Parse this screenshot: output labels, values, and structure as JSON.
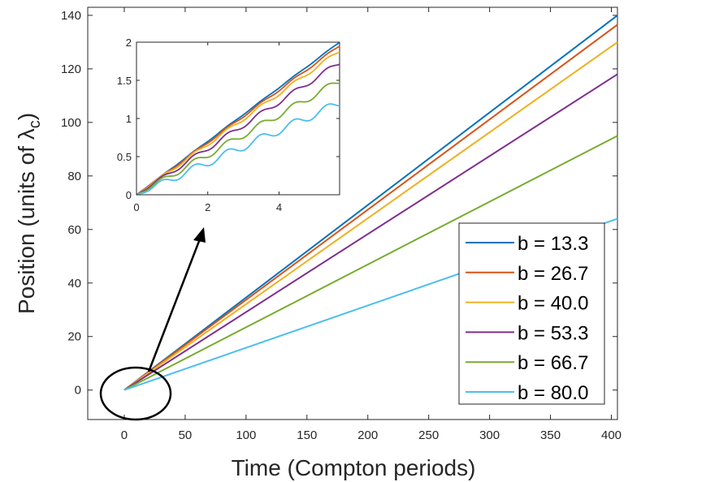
{
  "chart_data": [
    {
      "type": "line",
      "name": "main",
      "title": "",
      "xlabel": "Time (Compton periods)",
      "ylabel_prefix": "Position (units of ",
      "ylabel_symbol": "λ",
      "ylabel_subscript": "c",
      "ylabel_suffix": ")",
      "xlim": [
        -30,
        405
      ],
      "ylim": [
        -11,
        143
      ],
      "xticks": [
        0,
        50,
        100,
        150,
        200,
        250,
        300,
        350,
        400
      ],
      "yticks": [
        0,
        20,
        40,
        60,
        80,
        100,
        120,
        140
      ],
      "xtick_labels": [
        "0",
        "50",
        "100",
        "150",
        "200",
        "250",
        "300",
        "350",
        "400"
      ],
      "ytick_labels": [
        "0",
        "20",
        "40",
        "60",
        "80",
        "100",
        "120",
        "140"
      ],
      "series": [
        {
          "name": "b = 13.3",
          "color": "#0072BD",
          "x": [
            0,
            405
          ],
          "y": [
            0,
            140
          ]
        },
        {
          "name": "b = 26.7",
          "color": "#D95319",
          "x": [
            0,
            405
          ],
          "y": [
            0,
            136.5
          ]
        },
        {
          "name": "b = 40.0",
          "color": "#EDB120",
          "x": [
            0,
            405
          ],
          "y": [
            0,
            130
          ]
        },
        {
          "name": "b = 53.3",
          "color": "#7E2F8E",
          "x": [
            0,
            405
          ],
          "y": [
            0,
            118
          ]
        },
        {
          "name": "b = 66.7",
          "color": "#77AC30",
          "x": [
            0,
            405
          ],
          "y": [
            0,
            95
          ]
        },
        {
          "name": "b = 80.0",
          "color": "#4DBEEE",
          "x": [
            0,
            405
          ],
          "y": [
            0,
            64
          ]
        }
      ],
      "legend_location": "bottom-right",
      "grid": false
    },
    {
      "type": "line",
      "name": "inset",
      "title": "",
      "xlim": [
        0,
        5.7
      ],
      "ylim": [
        0,
        2
      ],
      "xticks": [
        0,
        2,
        4
      ],
      "yticks": [
        0,
        0.5,
        1,
        1.5,
        2
      ],
      "xtick_labels": [
        "0",
        "2",
        "4"
      ],
      "ytick_labels": [
        "0",
        "0.5",
        "1",
        "1.5",
        "2"
      ],
      "series": [
        {
          "name": "b = 13.3",
          "color": "#0072BD",
          "slope": 0.351,
          "osc_amp": 0.005
        },
        {
          "name": "b = 26.7",
          "color": "#D95319",
          "slope": 0.343,
          "osc_amp": 0.012
        },
        {
          "name": "b = 40.0",
          "color": "#EDB120",
          "slope": 0.331,
          "osc_amp": 0.022
        },
        {
          "name": "b = 53.3",
          "color": "#7E2F8E",
          "slope": 0.304,
          "osc_amp": 0.032
        },
        {
          "name": "b = 66.7",
          "color": "#77AC30",
          "slope": 0.262,
          "osc_amp": 0.042
        },
        {
          "name": "b = 80.0",
          "color": "#4DBEEE",
          "slope": 0.211,
          "osc_amp": 0.052
        }
      ],
      "osc_period": 0.93,
      "note": "Zoomed view of the region near the origin, indicated by the circle and arrow"
    }
  ]
}
